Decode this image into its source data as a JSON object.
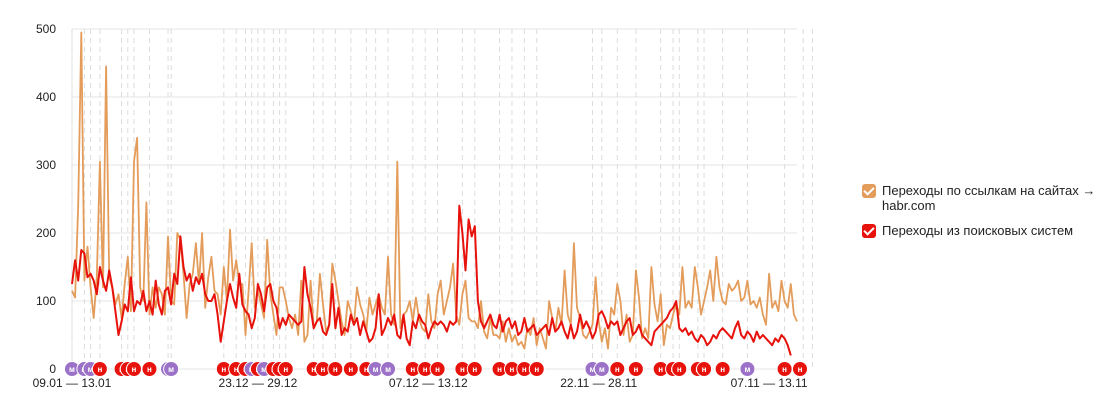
{
  "chart_data": {
    "type": "line",
    "ylim": [
      0,
      500
    ],
    "yticks": [
      0,
      100,
      200,
      300,
      400,
      500
    ],
    "x_labels": [
      {
        "index": 0,
        "label": "09.01 — 13.01"
      },
      {
        "index": 60,
        "label": "23.12 — 29.12"
      },
      {
        "index": 115,
        "label": "07.12 — 13.12"
      },
      {
        "index": 170,
        "label": "22.11 — 28.11"
      },
      {
        "index": 225,
        "label": "07.11 — 13.11"
      }
    ],
    "series": [
      {
        "name": "Переходы по ссылкам на сайтах → habr.com",
        "color": "#e49c5b",
        "values": [
          115,
          105,
          240,
          495,
          130,
          180,
          120,
          75,
          135,
          305,
          120,
          445,
          135,
          120,
          95,
          110,
          75,
          125,
          165,
          85,
          305,
          340,
          120,
          100,
          245,
          80,
          120,
          90,
          120,
          110,
          80,
          195,
          100,
          95,
          200,
          190,
          140,
          75,
          125,
          140,
          185,
          125,
          200,
          90,
          135,
          165,
          115,
          110,
          80,
          150,
          100,
          205,
          130,
          160,
          125,
          125,
          50,
          115,
          185,
          90,
          115,
          95,
          75,
          190,
          110,
          80,
          50,
          120,
          120,
          100,
          75,
          60,
          80,
          50,
          130,
          40,
          50,
          130,
          60,
          70,
          140,
          95,
          55,
          65,
          155,
          130,
          100,
          70,
          50,
          100,
          85,
          65,
          120,
          95,
          80,
          55,
          105,
          80,
          95,
          110,
          90,
          80,
          165,
          80,
          65,
          305,
          60,
          80,
          85,
          100,
          70,
          105,
          75,
          60,
          55,
          110,
          70,
          60,
          110,
          130,
          80,
          100,
          120,
          155,
          80,
          65,
          110,
          130,
          75,
          70,
          70,
          60,
          100,
          55,
          45,
          75,
          50,
          50,
          45,
          70,
          40,
          60,
          40,
          50,
          35,
          40,
          30,
          60,
          50,
          75,
          35,
          60,
          45,
          30,
          100,
          75,
          55,
          90,
          65,
          145,
          80,
          65,
          185,
          90,
          75,
          50,
          45,
          55,
          65,
          135,
          70,
          40,
          60,
          30,
          90,
          80,
          125,
          100,
          50,
          80,
          40,
          50,
          145,
          105,
          45,
          60,
          45,
          150,
          95,
          70,
          110,
          35,
          65,
          60,
          80,
          95,
          80,
          150,
          90,
          100,
          90,
          150,
          120,
          80,
          100,
          120,
          145,
          100,
          165,
          120,
          100,
          95,
          125,
          115,
          120,
          130,
          100,
          105,
          130,
          95,
          100,
          90,
          105,
          80,
          65,
          140,
          90,
          100,
          85,
          130,
          100,
          90,
          125,
          80,
          70
        ]
      },
      {
        "name": "Переходы из поисковых систем",
        "color": "#e8120c",
        "values": [
          125,
          160,
          130,
          175,
          170,
          135,
          140,
          130,
          110,
          150,
          130,
          115,
          145,
          120,
          85,
          50,
          70,
          95,
          85,
          135,
          85,
          100,
          95,
          115,
          85,
          100,
          80,
          130,
          95,
          80,
          115,
          120,
          95,
          140,
          125,
          195,
          150,
          130,
          140,
          115,
          135,
          125,
          140,
          110,
          100,
          100,
          110,
          80,
          40,
          70,
          100,
          125,
          105,
          90,
          140,
          95,
          85,
          80,
          60,
          75,
          125,
          110,
          85,
          120,
          125,
          100,
          90,
          60,
          75,
          65,
          80,
          75,
          70,
          65,
          70,
          150,
          110,
          90,
          60,
          70,
          75,
          55,
          50,
          65,
          125,
          60,
          90,
          50,
          60,
          55,
          80,
          65,
          75,
          50,
          70,
          55,
          40,
          45,
          60,
          110,
          50,
          60,
          75,
          65,
          80,
          50,
          45,
          80,
          45,
          35,
          70,
          60,
          80,
          70,
          65,
          45,
          60,
          70,
          65,
          70,
          65,
          55,
          70,
          65,
          70,
          240,
          200,
          145,
          220,
          195,
          210,
          100,
          70,
          60,
          70,
          80,
          65,
          60,
          80,
          55,
          70,
          75,
          60,
          70,
          50,
          55,
          75,
          55,
          60,
          65,
          50,
          55,
          60,
          65,
          50,
          75,
          55,
          60,
          70,
          55,
          45,
          65,
          45,
          55,
          80,
          60,
          70,
          60,
          45,
          55,
          80,
          85,
          75,
          60,
          70,
          65,
          70,
          50,
          60,
          70,
          75,
          50,
          55,
          65,
          50,
          45,
          40,
          35,
          55,
          60,
          65,
          70,
          75,
          85,
          90,
          100,
          60,
          55,
          60,
          50,
          55,
          45,
          40,
          50,
          45,
          35,
          40,
          50,
          45,
          55,
          60,
          55,
          50,
          45,
          60,
          70,
          50,
          45,
          55,
          50,
          40,
          55,
          45,
          50,
          45,
          40,
          35,
          45,
          40,
          50,
          45,
          35,
          20
        ]
      }
    ],
    "event_markers": [
      {
        "index": 0,
        "letter": "м",
        "color": "#9b72c8"
      },
      {
        "index": 4,
        "letter": "м",
        "color": "#9b72c8"
      },
      {
        "index": 6,
        "letter": "м",
        "color": "#9b72c8"
      },
      {
        "index": 9,
        "letter": "н",
        "color": "#e8120c"
      },
      {
        "index": 16,
        "letter": "н",
        "color": "#e8120c"
      },
      {
        "index": 18,
        "letter": "н",
        "color": "#e8120c"
      },
      {
        "index": 20,
        "letter": "н",
        "color": "#e8120c"
      },
      {
        "index": 25,
        "letter": "н",
        "color": "#e8120c"
      },
      {
        "index": 31,
        "letter": "м",
        "color": "#9b72c8"
      },
      {
        "index": 32,
        "letter": "м",
        "color": "#9b72c8"
      },
      {
        "index": 49,
        "letter": "н",
        "color": "#e8120c"
      },
      {
        "index": 53,
        "letter": "н",
        "color": "#e8120c"
      },
      {
        "index": 56,
        "letter": "н",
        "color": "#e8120c"
      },
      {
        "index": 58,
        "letter": "м",
        "color": "#9b72c8"
      },
      {
        "index": 60,
        "letter": "н",
        "color": "#e8120c"
      },
      {
        "index": 62,
        "letter": "м",
        "color": "#9b72c8"
      },
      {
        "index": 65,
        "letter": "н",
        "color": "#e8120c"
      },
      {
        "index": 67,
        "letter": "н",
        "color": "#e8120c"
      },
      {
        "index": 69,
        "letter": "н",
        "color": "#e8120c"
      },
      {
        "index": 78,
        "letter": "н",
        "color": "#e8120c"
      },
      {
        "index": 81,
        "letter": "н",
        "color": "#e8120c"
      },
      {
        "index": 85,
        "letter": "н",
        "color": "#e8120c"
      },
      {
        "index": 90,
        "letter": "н",
        "color": "#e8120c"
      },
      {
        "index": 95,
        "letter": "н",
        "color": "#e8120c"
      },
      {
        "index": 98,
        "letter": "м",
        "color": "#9b72c8"
      },
      {
        "index": 102,
        "letter": "м",
        "color": "#9b72c8"
      },
      {
        "index": 110,
        "letter": "н",
        "color": "#e8120c"
      },
      {
        "index": 114,
        "letter": "н",
        "color": "#e8120c"
      },
      {
        "index": 118,
        "letter": "н",
        "color": "#e8120c"
      },
      {
        "index": 126,
        "letter": "н",
        "color": "#e8120c"
      },
      {
        "index": 130,
        "letter": "н",
        "color": "#e8120c"
      },
      {
        "index": 138,
        "letter": "н",
        "color": "#e8120c"
      },
      {
        "index": 142,
        "letter": "н",
        "color": "#e8120c"
      },
      {
        "index": 146,
        "letter": "н",
        "color": "#e8120c"
      },
      {
        "index": 150,
        "letter": "н",
        "color": "#e8120c"
      },
      {
        "index": 168,
        "letter": "м",
        "color": "#9b72c8"
      },
      {
        "index": 171,
        "letter": "м",
        "color": "#9b72c8"
      },
      {
        "index": 176,
        "letter": "н",
        "color": "#e8120c"
      },
      {
        "index": 182,
        "letter": "н",
        "color": "#e8120c"
      },
      {
        "index": 190,
        "letter": "н",
        "color": "#e8120c"
      },
      {
        "index": 194,
        "letter": "н",
        "color": "#e8120c"
      },
      {
        "index": 196,
        "letter": "н",
        "color": "#e8120c"
      },
      {
        "index": 202,
        "letter": "н",
        "color": "#e8120c"
      },
      {
        "index": 204,
        "letter": "н",
        "color": "#e8120c"
      },
      {
        "index": 210,
        "letter": "н",
        "color": "#e8120c"
      },
      {
        "index": 218,
        "letter": "м",
        "color": "#9b72c8"
      },
      {
        "index": 230,
        "letter": "н",
        "color": "#e8120c"
      },
      {
        "index": 236,
        "letter": "н",
        "color": "#e8120c"
      },
      {
        "index": 239,
        "letter": "н",
        "color": "#e8120c"
      }
    ],
    "legend_position": "right"
  }
}
